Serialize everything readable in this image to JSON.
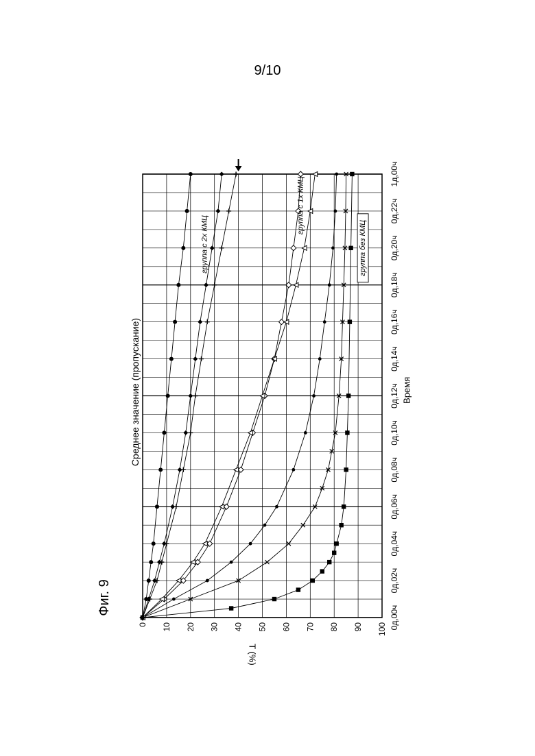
{
  "page": {
    "number": "9/10",
    "figure_label": "Фиг. 9"
  },
  "chart_data": {
    "type": "line",
    "title": "Среднее значение (пропускание)",
    "xlabel": "Время",
    "ylabel": "T (%)",
    "x_tick_labels": [
      "0д,00ч",
      "0д,02ч",
      "0д,04ч",
      "0д,06ч",
      "0д,08ч",
      "0д,10ч",
      "0д,12ч",
      "0д,14ч",
      "0д,16ч",
      "0д,18ч",
      "0д,20ч",
      "0д,22ч",
      "1д,00ч"
    ],
    "y_ticks": [
      0,
      10,
      20,
      30,
      40,
      50,
      60,
      70,
      80,
      90,
      100
    ],
    "xlim_hours": [
      0,
      24
    ],
    "ylim": [
      0,
      100
    ],
    "grid": true,
    "rotation": "rotated 90 degrees counter-clockwise on the page",
    "arrow_marker": {
      "x_hours": 24,
      "y": 40
    },
    "group_labels": [
      {
        "text": "группа без КМЦ",
        "boxed": true,
        "x_hours": 20,
        "y": 92
      },
      {
        "text": "группа с 1х КМЦ",
        "boxed": false,
        "x_hours": 22.3,
        "y": 66
      },
      {
        "text": "группа с 2х КМЦ",
        "boxed": false,
        "x_hours": 20.2,
        "y": 26
      }
    ],
    "series": [
      {
        "marker": "square",
        "group": "группа без КМЦ",
        "x_hours": [
          0,
          0.5,
          1,
          1.5,
          2,
          2.5,
          3,
          3.5,
          4,
          5,
          6,
          8,
          10,
          12,
          16,
          20,
          24
        ],
        "values": [
          0,
          37,
          55,
          65,
          71,
          75,
          78,
          80,
          81,
          83,
          84,
          85,
          85.5,
          86,
          86.5,
          87,
          87.5
        ]
      },
      {
        "marker": "x",
        "group": "группа без КМЦ",
        "x_hours": [
          0,
          1,
          2,
          3,
          4,
          5,
          6,
          7,
          8,
          9,
          10,
          12,
          14,
          16,
          18,
          20,
          22,
          24
        ],
        "values": [
          0,
          20,
          40,
          52,
          61,
          67,
          72,
          75,
          77.5,
          79,
          80.5,
          82,
          83,
          83.5,
          84,
          84.5,
          84.8,
          85
        ]
      },
      {
        "marker": "dot",
        "group": "группа без КМЦ",
        "x_hours": [
          0,
          1,
          2,
          3,
          4,
          5,
          6,
          8,
          10,
          12,
          14,
          16,
          18,
          20,
          22,
          24
        ],
        "values": [
          0,
          13,
          27,
          37,
          45,
          51,
          56,
          63,
          68,
          71.5,
          74,
          76,
          78,
          79.5,
          80.5,
          81
        ]
      },
      {
        "marker": "diamond-open",
        "group": "группа с 1х КМЦ",
        "x_hours": [
          0,
          1,
          2,
          3,
          4,
          6,
          8,
          10,
          12,
          14,
          16,
          18,
          20,
          22,
          24
        ],
        "values": [
          0,
          9,
          17,
          23,
          28,
          35,
          41,
          46,
          51,
          55,
          58,
          61,
          63,
          65,
          66
        ]
      },
      {
        "marker": "triangle-open",
        "group": "группа с 1х КМЦ",
        "x_hours": [
          0,
          1,
          2,
          3,
          4,
          6,
          8,
          10,
          12,
          14,
          16,
          18,
          20,
          22,
          24
        ],
        "values": [
          0,
          8,
          15,
          21,
          26,
          33,
          39,
          45,
          50,
          55,
          60,
          64,
          67.5,
          70,
          72
        ]
      },
      {
        "marker": "plus",
        "group": "группа с 2х КМЦ",
        "x_hours": [
          0,
          1,
          2,
          3,
          4,
          6,
          8,
          10,
          12,
          14,
          16,
          18,
          20,
          22,
          24
        ],
        "values": [
          0,
          3,
          6,
          8,
          10,
          14,
          17,
          20,
          22,
          24.5,
          27,
          30,
          33,
          36,
          39
        ]
      },
      {
        "marker": "filled-diamond",
        "group": "группа с 2х КМЦ",
        "x_hours": [
          0,
          1,
          2,
          3,
          4,
          6,
          8,
          10,
          12,
          14,
          16,
          18,
          20,
          22,
          24
        ],
        "values": [
          0,
          2.5,
          5,
          7,
          9,
          12.5,
          15.5,
          18,
          20,
          22,
          24,
          26.5,
          29,
          31.5,
          33
        ]
      },
      {
        "marker": "filled-circle",
        "group": "группа с 2х КМЦ",
        "x_hours": [
          0,
          1,
          2,
          3,
          4,
          6,
          8,
          10,
          12,
          14,
          16,
          18,
          20,
          22,
          24
        ],
        "values": [
          0,
          1.5,
          2.5,
          3.5,
          4.5,
          6,
          7.5,
          9,
          10.5,
          12,
          13.5,
          15,
          17,
          18.5,
          20
        ]
      }
    ]
  }
}
